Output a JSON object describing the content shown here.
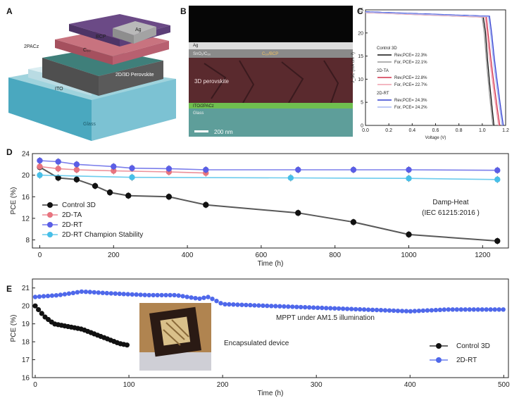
{
  "panel_a": {
    "label": "A",
    "layers": [
      "Glass",
      "ITO",
      "2PACz",
      "2D/3D Perovskite",
      "C₆₀",
      "BCP",
      "Ag"
    ]
  },
  "panel_b": {
    "label": "B",
    "labels": [
      "Ag",
      "SnO₂/C₆₀",
      "C₆₀/BCP",
      "3D perovskite",
      "ITO/2PACz",
      "Glass"
    ],
    "scale_bar": "200 nm"
  },
  "panel_c_label": "C",
  "panel_d_label": "D",
  "panel_e_label": "E",
  "chart_data": [
    {
      "id": "C",
      "type": "line",
      "xlabel": "Voltage (V)",
      "ylabel": "J_SC (mA cm⁻²)",
      "xlim": [
        0.0,
        1.2
      ],
      "ylim": [
        0,
        25
      ],
      "xticks": [
        "0.0",
        "0.2",
        "0.4",
        "0.6",
        "0.8",
        "1.0",
        "1.2"
      ],
      "yticks": [
        "0",
        "5",
        "10",
        "15",
        "20",
        "25"
      ],
      "legend_groups": [
        {
          "title": "Control 3D",
          "title_color": "#111111",
          "entries": [
            "Rev,PCE= 22.3%",
            "For, PCE= 22.1%"
          ]
        },
        {
          "title": "2D-TA",
          "title_color": "#e0405a",
          "entries": [
            "Rev,PCE= 22.8%",
            "For, PCE= 22.7%"
          ]
        },
        {
          "title": "2D-RT",
          "title_color": "#3a4fd8",
          "entries": [
            "Rev,PCE= 24.3%",
            "For, PCE= 24.2%"
          ]
        }
      ],
      "series": [
        {
          "name": "Rev,PCE= 22.3%",
          "color": "#111111",
          "jsc": 24.5,
          "voc": 1.1,
          "knee_v": 1.02
        },
        {
          "name": "For, PCE= 22.1%",
          "color": "#999999",
          "jsc": 24.4,
          "voc": 1.09,
          "knee_v": 1.01
        },
        {
          "name": "Rev,PCE= 22.8%",
          "color": "#d2304a",
          "jsc": 24.5,
          "voc": 1.15,
          "knee_v": 1.04
        },
        {
          "name": "For, PCE= 22.7%",
          "color": "#f0a0ae",
          "jsc": 24.4,
          "voc": 1.14,
          "knee_v": 1.03
        },
        {
          "name": "Rev,PCE= 24.3%",
          "color": "#3440d0",
          "jsc": 24.6,
          "voc": 1.18,
          "knee_v": 1.07
        },
        {
          "name": "For, PCE= 24.2%",
          "color": "#a8b8f4",
          "jsc": 24.5,
          "voc": 1.17,
          "knee_v": 1.06
        }
      ]
    },
    {
      "id": "D",
      "type": "scatter",
      "xlabel": "Time (h)",
      "ylabel": "PCE (%)",
      "xlim": [
        -20,
        1270
      ],
      "ylim": [
        6.5,
        24
      ],
      "xticks": [
        0,
        200,
        400,
        600,
        800,
        1000,
        1200
      ],
      "yticks": [
        8,
        12,
        16,
        20,
        24
      ],
      "annotation": [
        "Damp-Heat",
        "(IEC 61215:2016 )"
      ],
      "legend": [
        {
          "label": "Control 3D",
          "color": "#111111"
        },
        {
          "label": "2D-TA",
          "color": "#e8747f"
        },
        {
          "label": "2D-RT",
          "color": "#5a5ee6"
        },
        {
          "label": "2D-RT Champion Stability",
          "color": "#47bfe8"
        }
      ],
      "series": [
        {
          "name": "Control 3D",
          "color": "#111111",
          "x": [
            0,
            50,
            100,
            150,
            190,
            240,
            350,
            450,
            700,
            850,
            1000,
            1240
          ],
          "y": [
            21.5,
            19.5,
            19.2,
            18.0,
            16.8,
            16.2,
            16.0,
            14.5,
            13.0,
            11.3,
            9.0,
            7.8
          ]
        },
        {
          "name": "2D-TA",
          "color": "#e8747f",
          "x": [
            0,
            50,
            100,
            200,
            350,
            450
          ],
          "y": [
            21.6,
            21.2,
            21.0,
            20.8,
            20.6,
            20.4
          ]
        },
        {
          "name": "2D-RT",
          "color": "#5a5ee6",
          "x": [
            0,
            50,
            100,
            200,
            250,
            350,
            450,
            700,
            850,
            1000,
            1240
          ],
          "y": [
            22.7,
            22.5,
            22.0,
            21.6,
            21.3,
            21.2,
            21.0,
            21.0,
            21.0,
            21.0,
            20.9
          ]
        },
        {
          "name": "2D-RT Champion Stability",
          "color": "#47bfe8",
          "x": [
            0,
            250,
            680,
            1000,
            1240
          ],
          "y": [
            20.0,
            19.6,
            19.5,
            19.4,
            19.2
          ]
        }
      ]
    },
    {
      "id": "E",
      "type": "line",
      "xlabel": "Time (h)",
      "ylabel": "PCE (%)",
      "xlim": [
        -3,
        505
      ],
      "ylim": [
        16,
        21.5
      ],
      "xticks": [
        0,
        100,
        200,
        300,
        400,
        500
      ],
      "yticks": [
        16,
        17,
        18,
        19,
        20,
        21
      ],
      "annotations": [
        "MPPT under AM1.5 illumination",
        "Encapsulated device"
      ],
      "legend": [
        {
          "label": "Control 3D",
          "color": "#111111"
        },
        {
          "label": "2D-RT",
          "color": "#4f68ea"
        }
      ],
      "series": [
        {
          "name": "Control 3D",
          "color": "#111111",
          "x": [
            0,
            10,
            20,
            30,
            40,
            50,
            60,
            70,
            80,
            90,
            100
          ],
          "y": [
            20.0,
            19.4,
            19.0,
            18.9,
            18.8,
            18.7,
            18.5,
            18.3,
            18.1,
            17.9,
            17.8
          ]
        },
        {
          "name": "2D-RT",
          "color": "#4f68ea",
          "x": [
            0,
            25,
            50,
            80,
            120,
            150,
            175,
            185,
            200,
            250,
            300,
            350,
            400,
            440,
            460,
            500
          ],
          "y": [
            20.5,
            20.6,
            20.8,
            20.7,
            20.6,
            20.6,
            20.4,
            20.5,
            20.1,
            20.0,
            19.9,
            19.8,
            19.7,
            19.8,
            19.8,
            19.8
          ]
        }
      ]
    }
  ]
}
